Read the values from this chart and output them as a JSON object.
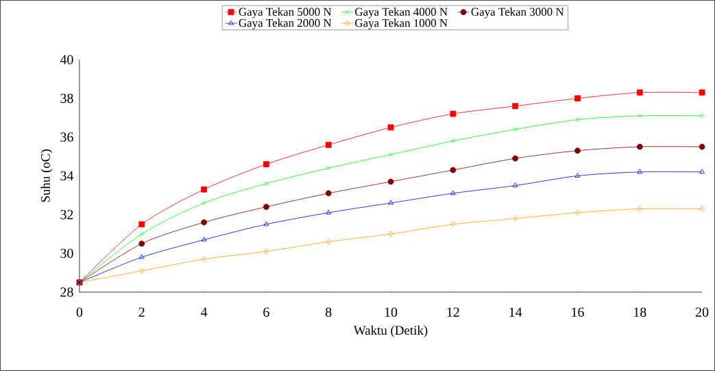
{
  "chart_data": {
    "type": "line",
    "xlabel": "Waktu  (Detik)",
    "ylabel": "Suhu (oC)",
    "x": [
      0,
      2,
      4,
      6,
      8,
      10,
      12,
      14,
      16,
      18,
      20
    ],
    "xlim": [
      0,
      20
    ],
    "xticks": [
      0,
      2,
      4,
      6,
      8,
      10,
      12,
      14,
      16,
      18,
      20
    ],
    "ylim": [
      28,
      40
    ],
    "yticks": [
      28,
      30,
      32,
      34,
      36,
      38,
      40
    ],
    "grid": false,
    "legend": "top",
    "series": [
      {
        "name": "Gaya Tekan 5000 N",
        "color": "#ff0000",
        "marker": "square",
        "values": [
          28.5,
          31.5,
          33.3,
          34.6,
          35.6,
          36.5,
          37.2,
          37.6,
          38.0,
          38.3,
          38.3
        ]
      },
      {
        "name": "Gaya Tekan 4000 N",
        "color": "#00ff00",
        "marker": "cross",
        "values": [
          28.5,
          31.0,
          32.6,
          33.6,
          34.4,
          35.1,
          35.8,
          36.4,
          36.9,
          37.1,
          37.1
        ]
      },
      {
        "name": "Gaya Tekan 3000 N",
        "color": "#800000",
        "marker": "circle",
        "values": [
          28.5,
          30.5,
          31.6,
          32.4,
          33.1,
          33.7,
          34.3,
          34.9,
          35.3,
          35.5,
          35.5
        ]
      },
      {
        "name": "Gaya Tekan 2000 N",
        "color": "#0000ff",
        "marker": "triangle",
        "values": [
          28.5,
          29.8,
          30.7,
          31.5,
          32.1,
          32.6,
          33.1,
          33.5,
          34.0,
          34.2,
          34.2
        ]
      },
      {
        "name": "Gaya Tekan 1000 N",
        "color": "#ff9900",
        "marker": "diamond",
        "values": [
          28.5,
          29.1,
          29.7,
          30.1,
          30.6,
          31.0,
          31.5,
          31.8,
          32.1,
          32.3,
          32.3
        ]
      }
    ]
  }
}
